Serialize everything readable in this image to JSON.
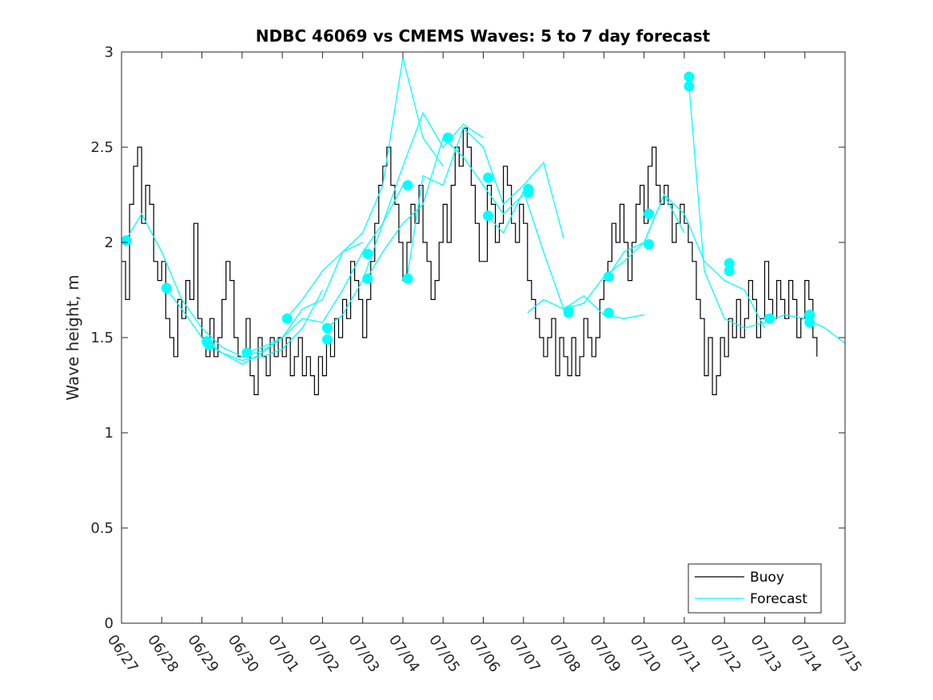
{
  "chart_data": {
    "type": "line",
    "title": "NDBC 46069 vs CMEMS Waves: 5 to 7 day forecast",
    "ylabel": "Wave height, m",
    "xlabel": "",
    "xlim": [
      0,
      18
    ],
    "ylim": [
      0,
      3
    ],
    "y_ticks": [
      "0",
      "0.5",
      "1",
      "1.5",
      "2",
      "2.5",
      "3"
    ],
    "x_ticks": [
      "06/27",
      "06/28",
      "06/29",
      "06/30",
      "07/01",
      "07/02",
      "07/03",
      "07/04",
      "07/05",
      "07/06",
      "07/07",
      "07/08",
      "07/09",
      "07/10",
      "07/11",
      "07/12",
      "07/13",
      "07/14",
      "07/15"
    ],
    "grid": false,
    "legend_position": "bottom-right",
    "colors": {
      "buoy": "#000000",
      "forecast": "#00FFFF",
      "axes": "#262626"
    },
    "series": [
      {
        "name": "Buoy",
        "color": "#000000",
        "x": [
          0.0,
          0.1,
          0.2,
          0.3,
          0.4,
          0.5,
          0.6,
          0.7,
          0.8,
          0.9,
          1.0,
          1.1,
          1.2,
          1.3,
          1.4,
          1.5,
          1.6,
          1.7,
          1.8,
          1.9,
          2.0,
          2.1,
          2.2,
          2.3,
          2.4,
          2.5,
          2.6,
          2.7,
          2.8,
          2.9,
          3.0,
          3.1,
          3.2,
          3.3,
          3.4,
          3.5,
          3.6,
          3.7,
          3.8,
          3.9,
          4.0,
          4.1,
          4.2,
          4.3,
          4.4,
          4.5,
          4.6,
          4.7,
          4.8,
          4.9,
          5.0,
          5.1,
          5.2,
          5.3,
          5.4,
          5.5,
          5.6,
          5.7,
          5.8,
          5.9,
          6.0,
          6.1,
          6.2,
          6.3,
          6.4,
          6.5,
          6.6,
          6.7,
          6.8,
          6.9,
          7.0,
          7.1,
          7.2,
          7.3,
          7.4,
          7.5,
          7.6,
          7.7,
          7.8,
          7.9,
          8.0,
          8.1,
          8.2,
          8.3,
          8.4,
          8.5,
          8.6,
          8.7,
          8.8,
          8.9,
          9.0,
          9.1,
          9.2,
          9.3,
          9.4,
          9.5,
          9.6,
          9.7,
          9.8,
          9.9,
          10.0,
          10.1,
          10.2,
          10.3,
          10.4,
          10.5,
          10.6,
          10.7,
          10.8,
          10.9,
          11.0,
          11.1,
          11.2,
          11.3,
          11.4,
          11.5,
          11.6,
          11.7,
          11.8,
          11.9,
          12.0,
          12.1,
          12.2,
          12.3,
          12.4,
          12.5,
          12.6,
          12.7,
          12.8,
          12.9,
          13.0,
          13.1,
          13.2,
          13.3,
          13.4,
          13.5,
          13.6,
          13.7,
          13.8,
          13.9,
          14.0,
          14.1,
          14.2,
          14.3,
          14.4,
          14.5,
          14.6,
          14.7,
          14.8,
          14.9,
          15.0,
          15.1,
          15.2,
          15.3,
          15.4,
          15.5,
          15.6,
          15.7,
          15.8,
          15.9,
          16.0,
          16.1,
          16.2,
          16.3,
          16.4,
          16.5,
          16.6,
          16.7,
          16.8,
          16.9,
          17.0,
          17.1,
          17.2,
          17.3
        ],
        "y": [
          1.9,
          1.7,
          2.2,
          2.4,
          2.5,
          2.1,
          2.3,
          2.2,
          1.9,
          1.8,
          1.9,
          1.6,
          1.5,
          1.4,
          1.7,
          1.6,
          1.8,
          1.7,
          2.1,
          1.6,
          1.5,
          1.4,
          1.6,
          1.4,
          1.5,
          1.7,
          1.9,
          1.8,
          1.5,
          1.4,
          1.4,
          1.6,
          1.3,
          1.2,
          1.5,
          1.4,
          1.3,
          1.5,
          1.4,
          1.5,
          1.4,
          1.5,
          1.3,
          1.4,
          1.5,
          1.3,
          1.4,
          1.3,
          1.2,
          1.4,
          1.3,
          1.5,
          1.4,
          1.6,
          1.5,
          1.7,
          1.6,
          1.9,
          1.8,
          1.7,
          1.5,
          1.7,
          1.9,
          2.1,
          2.3,
          2.4,
          2.5,
          2.3,
          2.2,
          2.0,
          1.8,
          2.0,
          2.2,
          2.1,
          2.3,
          2.0,
          1.9,
          1.7,
          1.8,
          2.0,
          2.2,
          2.0,
          2.3,
          2.5,
          2.4,
          2.6,
          2.5,
          2.3,
          2.1,
          1.9,
          1.9,
          2.3,
          2.2,
          2.0,
          2.1,
          2.4,
          2.3,
          2.1,
          2.0,
          2.2,
          2.1,
          1.8,
          1.7,
          1.6,
          1.5,
          1.4,
          1.5,
          1.6,
          1.3,
          1.5,
          1.4,
          1.3,
          1.5,
          1.3,
          1.4,
          1.6,
          1.5,
          1.4,
          1.5,
          1.7,
          1.8,
          1.9,
          2.1,
          2.0,
          2.2,
          2.0,
          1.8,
          2.0,
          2.2,
          2.3,
          2.1,
          2.4,
          2.5,
          2.3,
          2.2,
          2.3,
          2.2,
          2.0,
          2.1,
          2.2,
          2.1,
          2.0,
          1.9,
          1.7,
          1.6,
          1.3,
          1.5,
          1.2,
          1.3,
          1.5,
          1.4,
          1.6,
          1.5,
          1.7,
          1.5,
          1.6,
          1.8,
          1.7,
          1.5,
          1.6,
          1.9,
          1.7,
          1.6,
          1.8,
          1.7,
          1.6,
          1.8,
          1.7,
          1.5,
          1.6,
          1.8,
          1.7,
          1.5,
          1.4
        ]
      },
      {
        "name": "Forecast",
        "color": "#00FFFF",
        "runs": [
          {
            "x": [
              0.1,
              0.5,
              1.0,
              1.5,
              2.0,
              2.5,
              3.0,
              3.5,
              4.0
            ],
            "y": [
              2.01,
              2.15,
              1.95,
              1.7,
              1.55,
              1.45,
              1.4,
              1.43,
              1.5
            ]
          },
          {
            "x": [
              1.1,
              1.5,
              2.0,
              2.5,
              3.0,
              3.5,
              4.0,
              4.5,
              5.0
            ],
            "y": [
              1.76,
              1.65,
              1.5,
              1.42,
              1.38,
              1.4,
              1.44,
              1.55,
              1.75
            ]
          },
          {
            "x": [
              2.1,
              2.5,
              3.0,
              3.5,
              4.0,
              4.5,
              5.0,
              5.5,
              6.0
            ],
            "y": [
              1.47,
              1.42,
              1.36,
              1.42,
              1.5,
              1.65,
              1.7,
              1.95,
              2.0
            ]
          },
          {
            "x": [
              3.1,
              3.5,
              4.0,
              4.5,
              5.0,
              5.5,
              6.0,
              6.5,
              7.0
            ],
            "y": [
              1.42,
              1.45,
              1.5,
              1.6,
              1.58,
              1.75,
              1.95,
              2.1,
              2.3
            ]
          },
          {
            "x": [
              4.1,
              4.5,
              5.0,
              5.5,
              6.0,
              6.5,
              7.0,
              7.5,
              8.0
            ],
            "y": [
              1.6,
              1.7,
              1.85,
              1.95,
              2.05,
              2.3,
              2.97,
              2.55,
              2.4
            ]
          },
          {
            "x": [
              5.1,
              5.5,
              6.0,
              6.5,
              7.0,
              7.5,
              8.0,
              8.5,
              9.0
            ],
            "y": [
              1.55,
              1.62,
              1.8,
              2.1,
              2.4,
              2.68,
              2.5,
              2.62,
              2.55
            ]
          },
          {
            "x": [
              6.1,
              6.5,
              7.0,
              7.5,
              8.0,
              8.5,
              9.0,
              9.5,
              10.0
            ],
            "y": [
              1.81,
              1.95,
              2.1,
              2.2,
              2.55,
              2.45,
              2.3,
              2.15,
              2.25
            ]
          },
          {
            "x": [
              7.1,
              7.5,
              8.0,
              8.5,
              9.0,
              9.5,
              10.0,
              10.5,
              11.0
            ],
            "y": [
              1.81,
              2.35,
              2.3,
              2.6,
              2.5,
              2.2,
              2.3,
              2.42,
              2.02
            ]
          },
          {
            "x": [
              9.1,
              9.5,
              10.0,
              10.5,
              11.0,
              11.5,
              12.0,
              12.5,
              13.0
            ],
            "y": [
              2.14,
              2.05,
              2.27,
              1.95,
              1.65,
              1.72,
              1.62,
              1.6,
              1.62
            ]
          },
          {
            "x": [
              10.1,
              10.5,
              11.0,
              11.5,
              12.0,
              12.5,
              13.0,
              13.5,
              14.0
            ],
            "y": [
              1.63,
              1.7,
              1.65,
              1.68,
              1.82,
              1.9,
              2.0,
              2.25,
              2.05
            ]
          },
          {
            "x": [
              12.1,
              12.5,
              13.0,
              13.5,
              14.0,
              14.5,
              15.0,
              15.5,
              16.0
            ],
            "y": [
              1.82,
              1.95,
              2.0,
              2.25,
              2.15,
              1.9,
              1.8,
              1.75,
              1.55
            ]
          },
          {
            "x": [
              14.1,
              14.5,
              15.0,
              15.5,
              16.0,
              16.5,
              17.0,
              17.5,
              18.0
            ],
            "y": [
              2.87,
              1.85,
              1.6,
              1.55,
              1.58,
              1.62,
              1.6,
              1.55,
              1.47
            ]
          }
        ],
        "markers": [
          {
            "x": 0.12,
            "y": 2.01
          },
          {
            "x": 1.12,
            "y": 1.76
          },
          {
            "x": 2.12,
            "y": 1.48
          },
          {
            "x": 2.18,
            "y": 1.46
          },
          {
            "x": 3.12,
            "y": 1.42
          },
          {
            "x": 4.12,
            "y": 1.6
          },
          {
            "x": 5.12,
            "y": 1.55
          },
          {
            "x": 5.12,
            "y": 1.49
          },
          {
            "x": 6.12,
            "y": 1.94
          },
          {
            "x": 6.12,
            "y": 1.81
          },
          {
            "x": 7.12,
            "y": 2.3
          },
          {
            "x": 7.12,
            "y": 1.81
          },
          {
            "x": 8.12,
            "y": 2.55
          },
          {
            "x": 9.12,
            "y": 2.34
          },
          {
            "x": 9.12,
            "y": 2.14
          },
          {
            "x": 10.12,
            "y": 2.28
          },
          {
            "x": 10.12,
            "y": 2.26
          },
          {
            "x": 11.12,
            "y": 1.64
          },
          {
            "x": 11.12,
            "y": 1.63
          },
          {
            "x": 12.12,
            "y": 1.82
          },
          {
            "x": 12.12,
            "y": 1.63
          },
          {
            "x": 13.12,
            "y": 2.15
          },
          {
            "x": 13.12,
            "y": 1.99
          },
          {
            "x": 14.12,
            "y": 2.87
          },
          {
            "x": 14.12,
            "y": 2.82
          },
          {
            "x": 15.12,
            "y": 1.89
          },
          {
            "x": 15.12,
            "y": 1.85
          },
          {
            "x": 16.12,
            "y": 1.6
          },
          {
            "x": 17.12,
            "y": 1.62
          },
          {
            "x": 17.12,
            "y": 1.58
          }
        ]
      }
    ]
  }
}
